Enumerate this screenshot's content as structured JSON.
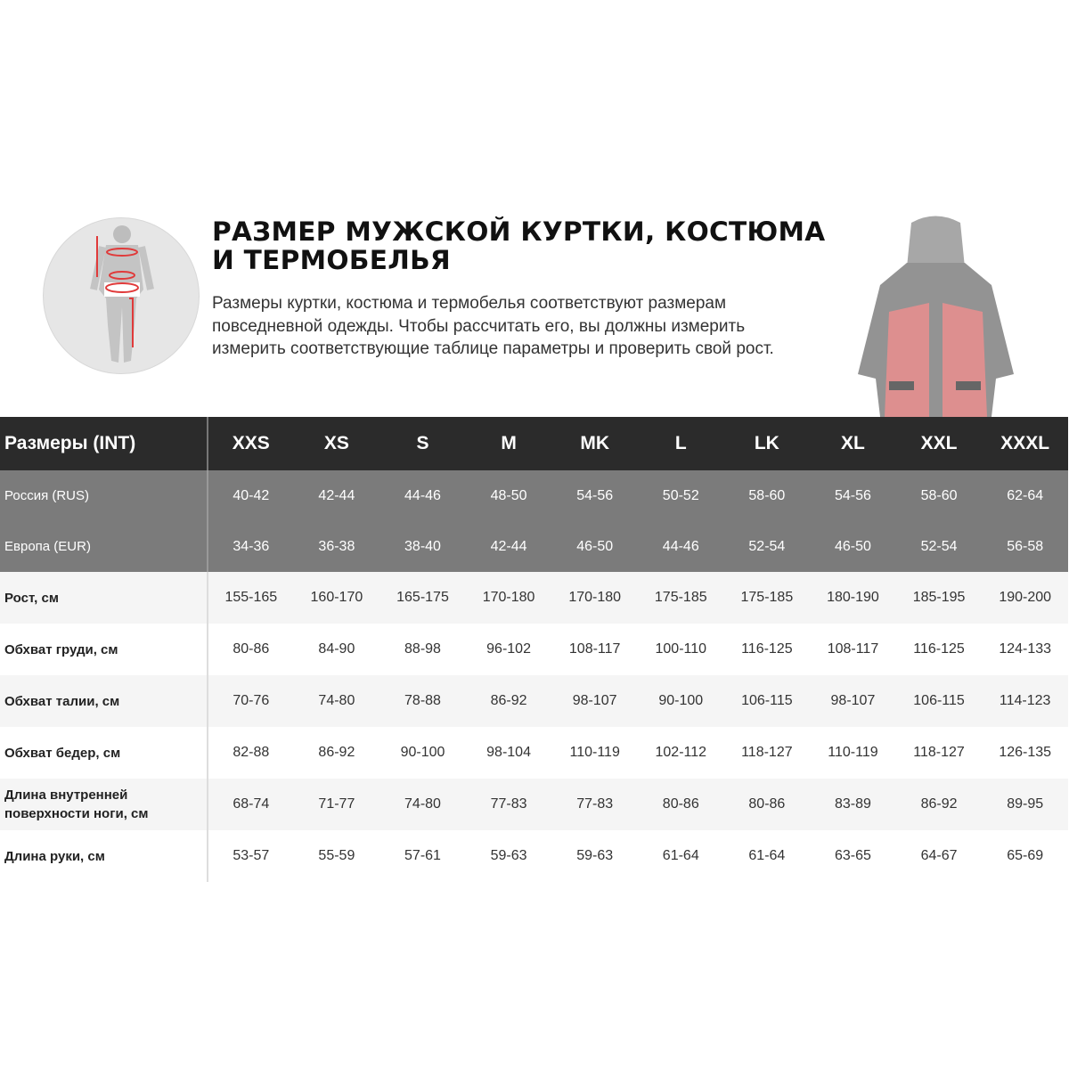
{
  "title": "РАЗМЕР МУЖСКОЙ КУРТКИ, КОСТЮМА И ТЕРМОБЕЛЬЯ",
  "description": "Размеры куртки, костюма и термобелья соответствуют размерам повседневной одежды. Чтобы рассчитать его, вы должны измерить измерить соответствующие таблице параметры и проверить свой рост.",
  "colors": {
    "header": "#2b2b2b",
    "gray_rows": "#7b7b7b",
    "accent": "#e03a3a"
  },
  "table": {
    "header": [
      "Размеры (INT)",
      "XXS",
      "XS",
      "S",
      "M",
      "MK",
      "L",
      "LK",
      "XL",
      "XXL",
      "XXXL"
    ],
    "gray_rows": [
      {
        "label": "Россия (RUS)",
        "values": [
          "40-42",
          "42-44",
          "44-46",
          "48-50",
          "54-56",
          "50-52",
          "58-60",
          "54-56",
          "58-60",
          "62-64"
        ]
      },
      {
        "label": "Европа (EUR)",
        "values": [
          "34-36",
          "36-38",
          "38-40",
          "42-44",
          "46-50",
          "44-46",
          "52-54",
          "46-50",
          "52-54",
          "56-58"
        ]
      }
    ],
    "rows": [
      {
        "label": "Рост, см",
        "values": [
          "155-165",
          "160-170",
          "165-175",
          "170-180",
          "170-180",
          "175-185",
          "175-185",
          "180-190",
          "185-195",
          "190-200"
        ]
      },
      {
        "label": "Обхват груди, см",
        "values": [
          "80-86",
          "84-90",
          "88-98",
          "96-102",
          "108-117",
          "100-110",
          "116-125",
          "108-117",
          "116-125",
          "124-133"
        ]
      },
      {
        "label": "Обхват талии, см",
        "values": [
          "70-76",
          "74-80",
          "78-88",
          "86-92",
          "98-107",
          "90-100",
          "106-115",
          "98-107",
          "106-115",
          "114-123"
        ]
      },
      {
        "label": "Обхват бедер, см",
        "values": [
          "82-88",
          "86-92",
          "90-100",
          "98-104",
          "110-119",
          "102-112",
          "118-127",
          "110-119",
          "118-127",
          "126-135"
        ]
      },
      {
        "label": "Длина внутренней поверхности ноги, см",
        "values": [
          "68-74",
          "71-77",
          "74-80",
          "77-83",
          "77-83",
          "80-86",
          "80-86",
          "83-89",
          "86-92",
          "89-95"
        ]
      },
      {
        "label": "Длина руки, см",
        "values": [
          "53-57",
          "55-59",
          "57-61",
          "59-63",
          "59-63",
          "61-64",
          "61-64",
          "63-65",
          "64-67",
          "65-69"
        ]
      }
    ]
  }
}
